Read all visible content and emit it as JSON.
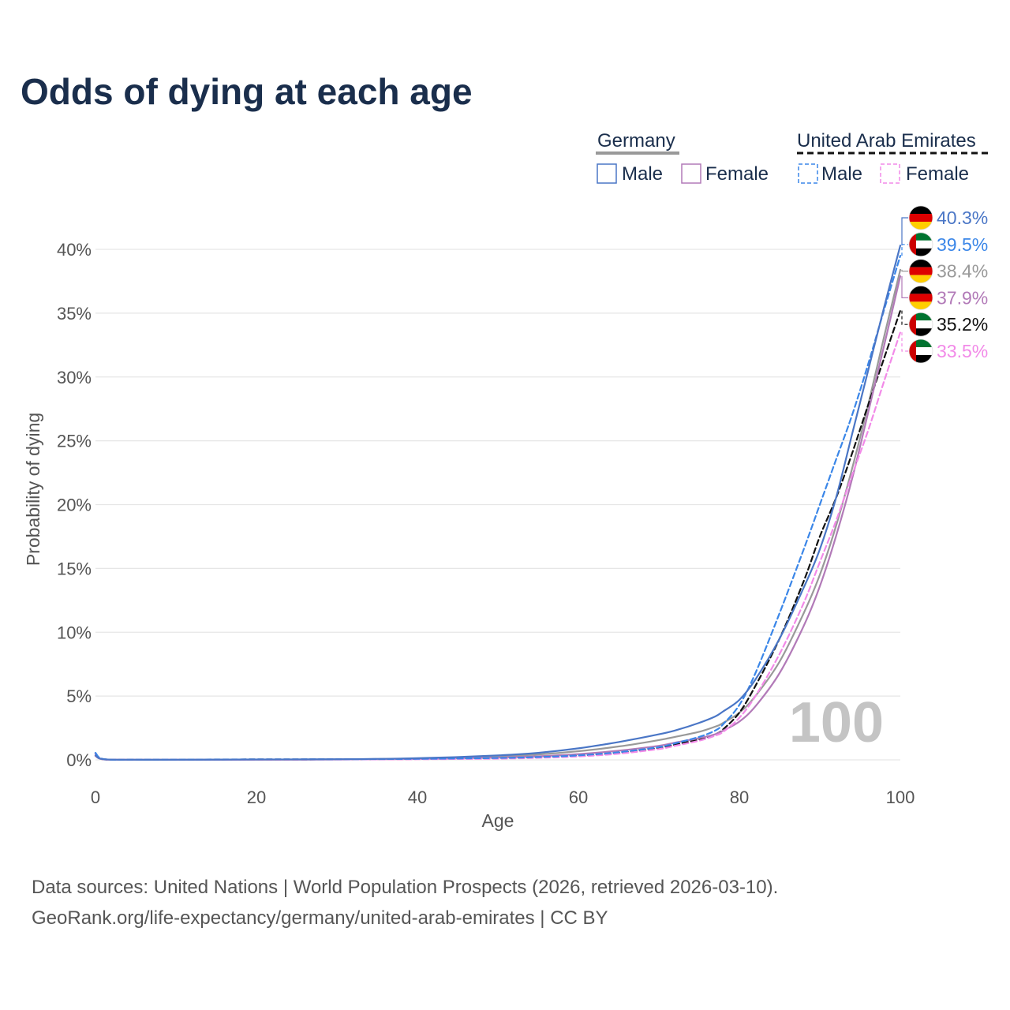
{
  "chart_data": {
    "type": "line",
    "title": "Odds of dying at each age",
    "xlabel": "Age",
    "ylabel": "Probability of dying",
    "xlim": [
      0,
      100
    ],
    "ylim": [
      0,
      40
    ],
    "x_ticks": [
      "0",
      "20",
      "40",
      "60",
      "80",
      "100"
    ],
    "x_tick_values": [
      0,
      20,
      40,
      60,
      80,
      100
    ],
    "y_ticks": [
      "0%",
      "5%",
      "10%",
      "15%",
      "20%",
      "25%",
      "30%",
      "35%",
      "40%"
    ],
    "y_tick_values": [
      0,
      5,
      10,
      15,
      20,
      25,
      30,
      35,
      40
    ],
    "grid": true,
    "watermark": "100",
    "legend": {
      "groups": [
        {
          "name": "Germany",
          "line_color": "#999999",
          "dashed": false,
          "items": [
            {
              "label": "Male",
              "color": "#4a76c6"
            },
            {
              "label": "Female",
              "color": "#b27ab8"
            }
          ]
        },
        {
          "name": "United Arab Emirates",
          "line_color": "#111111",
          "dashed": true,
          "items": [
            {
              "label": "Male",
              "color": "#3a86e8"
            },
            {
              "label": "Female",
              "color": "#f28ae8"
            }
          ]
        }
      ]
    },
    "x": [
      0,
      1,
      5,
      10,
      20,
      30,
      40,
      50,
      55,
      60,
      65,
      70,
      72,
      75,
      77,
      78,
      80,
      82,
      85,
      88,
      90,
      92,
      94,
      96,
      98,
      100
    ],
    "series": [
      {
        "name": "Germany Male",
        "country": "Germany",
        "sex": "Male",
        "color": "#4a76c6",
        "dashed": false,
        "end_label": "40.3%",
        "values": [
          0.35,
          0.05,
          0.01,
          0.01,
          0.03,
          0.05,
          0.13,
          0.35,
          0.55,
          0.9,
          1.4,
          2.0,
          2.3,
          2.9,
          3.4,
          3.8,
          4.7,
          6.3,
          9.5,
          13.5,
          16.5,
          20.5,
          25.5,
          30.5,
          35.5,
          40.3
        ]
      },
      {
        "name": "Germany Both",
        "country": "Germany",
        "sex": "Both",
        "color": "#999999",
        "dashed": false,
        "end_label": "38.4%",
        "values": [
          0.33,
          0.04,
          0.01,
          0.01,
          0.02,
          0.04,
          0.1,
          0.27,
          0.42,
          0.68,
          1.05,
          1.55,
          1.8,
          2.2,
          2.6,
          2.9,
          3.7,
          5.0,
          7.7,
          11.5,
          14.5,
          18.3,
          22.8,
          27.8,
          33.2,
          38.4
        ]
      },
      {
        "name": "Germany Female",
        "country": "Germany",
        "sex": "Female",
        "color": "#b27ab8",
        "dashed": false,
        "end_label": "37.9%",
        "values": [
          0.3,
          0.04,
          0.01,
          0.01,
          0.02,
          0.03,
          0.07,
          0.18,
          0.28,
          0.45,
          0.72,
          1.1,
          1.35,
          1.7,
          2.0,
          2.3,
          3.0,
          4.2,
          6.8,
          10.5,
          13.6,
          17.5,
          22.0,
          27.2,
          32.5,
          37.9
        ]
      },
      {
        "name": "United Arab Emirates Male",
        "country": "United Arab Emirates",
        "sex": "Male",
        "color": "#3a86e8",
        "dashed": true,
        "end_label": "39.5%",
        "values": [
          0.55,
          0.06,
          0.02,
          0.02,
          0.04,
          0.05,
          0.08,
          0.15,
          0.22,
          0.35,
          0.6,
          1.0,
          1.3,
          1.8,
          2.3,
          2.8,
          4.3,
          6.8,
          11.5,
          16.5,
          20.0,
          23.5,
          27.0,
          31.0,
          35.3,
          39.5
        ]
      },
      {
        "name": "United Arab Emirates Both",
        "country": "United Arab Emirates",
        "sex": "Both",
        "color": "#111111",
        "dashed": true,
        "end_label": "35.2%",
        "values": [
          0.5,
          0.05,
          0.02,
          0.02,
          0.03,
          0.04,
          0.07,
          0.13,
          0.2,
          0.32,
          0.55,
          0.95,
          1.2,
          1.6,
          2.0,
          2.4,
          3.7,
          5.8,
          9.5,
          14.0,
          17.5,
          20.5,
          24.0,
          27.8,
          31.5,
          35.2
        ]
      },
      {
        "name": "United Arab Emirates Female",
        "country": "United Arab Emirates",
        "sex": "Female",
        "color": "#f28ae8",
        "dashed": true,
        "end_label": "33.5%",
        "values": [
          0.45,
          0.05,
          0.02,
          0.02,
          0.02,
          0.03,
          0.05,
          0.1,
          0.16,
          0.27,
          0.48,
          0.85,
          1.1,
          1.5,
          1.9,
          2.2,
          3.3,
          5.0,
          8.3,
          12.3,
          15.5,
          18.7,
          22.3,
          25.8,
          29.7,
          33.5
        ]
      }
    ]
  },
  "footer": {
    "line1": "Data sources: United Nations | World Population Prospects (2026, retrieved 2026-03-10).",
    "line2": "GeoRank.org/life-expectancy/germany/united-arab-emirates | CC BY"
  }
}
